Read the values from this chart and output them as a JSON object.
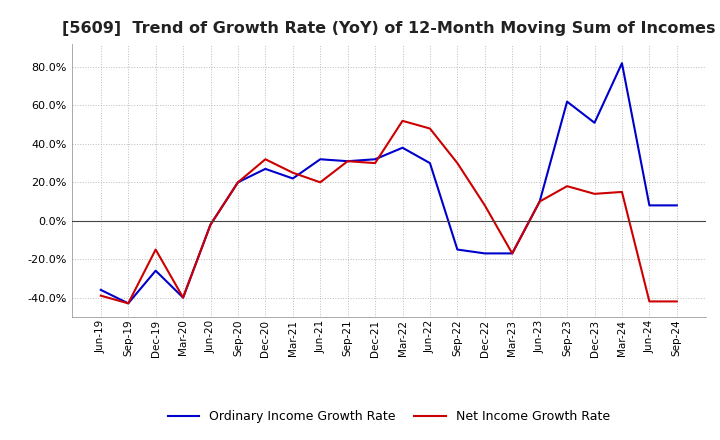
{
  "title": "[5609]  Trend of Growth Rate (YoY) of 12-Month Moving Sum of Incomes",
  "title_fontsize": 11.5,
  "ylim": [
    -50,
    92
  ],
  "yticks": [
    -40.0,
    -20.0,
    0.0,
    20.0,
    40.0,
    60.0,
    80.0
  ],
  "x_labels": [
    "Jun-19",
    "Sep-19",
    "Dec-19",
    "Mar-20",
    "Jun-20",
    "Sep-20",
    "Dec-20",
    "Mar-21",
    "Jun-21",
    "Sep-21",
    "Dec-21",
    "Mar-22",
    "Jun-22",
    "Sep-22",
    "Dec-22",
    "Mar-23",
    "Jun-23",
    "Sep-23",
    "Dec-23",
    "Mar-24",
    "Jun-24",
    "Sep-24"
  ],
  "ordinary_income": [
    -36,
    -43,
    -26,
    -40,
    -2,
    20,
    27,
    22,
    32,
    31,
    32,
    38,
    30,
    -15,
    -17,
    -17,
    10,
    62,
    51,
    82,
    8,
    8
  ],
  "net_income": [
    -39,
    -43,
    -15,
    -40,
    -2,
    20,
    32,
    25,
    20,
    31,
    30,
    52,
    48,
    30,
    8,
    -17,
    10,
    18,
    14,
    15,
    -42,
    -42
  ],
  "ordinary_color": "#0000cc",
  "net_color": "#cc0000",
  "line_width": 1.5,
  "grid_color": "#bbbbbb",
  "background_color": "#ffffff",
  "legend_ordinary": "Ordinary Income Growth Rate",
  "legend_net": "Net Income Growth Rate"
}
